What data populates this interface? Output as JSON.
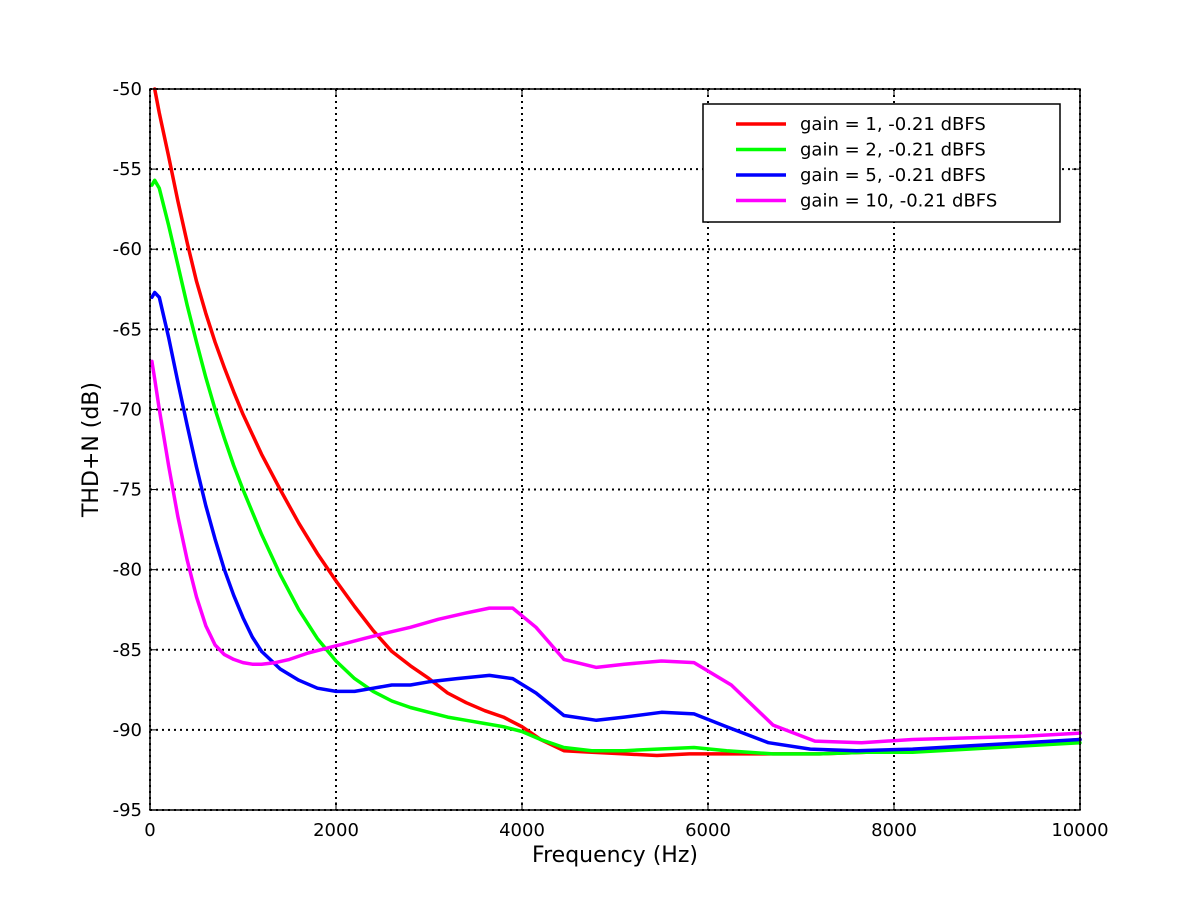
{
  "chart_data": {
    "type": "line",
    "xlabel": "Frequency (Hz)",
    "ylabel": "THD+N (dB)",
    "xlim": [
      0,
      10000
    ],
    "ylim": [
      -95,
      -50
    ],
    "x_ticks": [
      0,
      2000,
      4000,
      6000,
      8000,
      10000
    ],
    "y_ticks": [
      -95,
      -90,
      -85,
      -80,
      -75,
      -70,
      -65,
      -60,
      -55,
      -50
    ],
    "x_tick_labels": [
      "0",
      "2000",
      "4000",
      "6000",
      "8000",
      "10000"
    ],
    "y_tick_labels": [
      "-95",
      "-90",
      "-85",
      "-80",
      "-75",
      "-70",
      "-65",
      "-60",
      "-55",
      "-50"
    ],
    "grid": true,
    "grid_style": "dotted",
    "legend_position": "top-right",
    "series": [
      {
        "name": "gain = 1, -0.21 dBFS",
        "color": "#ff0000",
        "x": [
          50,
          100,
          200,
          300,
          400,
          500,
          600,
          700,
          800,
          900,
          1000,
          1200,
          1400,
          1600,
          1800,
          2000,
          2200,
          2400,
          2600,
          2800,
          3000,
          3200,
          3400,
          3600,
          3800,
          3900,
          4000,
          4200,
          4450,
          4750,
          5100,
          5450,
          5800,
          6200,
          6700,
          7200,
          7700,
          8200,
          8800,
          9400,
          10000
        ],
        "y": [
          -50,
          -51.5,
          -54.2,
          -57,
          -59.6,
          -62,
          -64,
          -65.8,
          -67.4,
          -68.9,
          -70.3,
          -72.8,
          -75,
          -77.1,
          -79,
          -80.7,
          -82.3,
          -83.8,
          -85.1,
          -86,
          -86.8,
          -87.7,
          -88.3,
          -88.8,
          -89.2,
          -89.5,
          -89.8,
          -90.6,
          -91.3,
          -91.4,
          -91.5,
          -91.6,
          -91.5,
          -91.5,
          -91.5,
          -91.5,
          -91.4,
          -91.3,
          -91.1,
          -90.9,
          -90.6
        ]
      },
      {
        "name": "gain = 2, -0.21 dBFS",
        "color": "#00ff00",
        "x": [
          20,
          50,
          100,
          200,
          300,
          400,
          500,
          600,
          700,
          800,
          900,
          1000,
          1200,
          1400,
          1600,
          1800,
          2000,
          2200,
          2400,
          2600,
          2800,
          3000,
          3200,
          3400,
          3600,
          3800,
          4000,
          4200,
          4450,
          4750,
          5100,
          5450,
          5850,
          6200,
          6700,
          7200,
          7700,
          8200,
          8800,
          9400,
          10000
        ],
        "y": [
          -56,
          -55.7,
          -56.2,
          -58.5,
          -61,
          -63.5,
          -65.8,
          -68,
          -70,
          -71.8,
          -73.5,
          -75,
          -77.8,
          -80.3,
          -82.5,
          -84.3,
          -85.7,
          -86.8,
          -87.6,
          -88.2,
          -88.6,
          -88.9,
          -89.2,
          -89.4,
          -89.6,
          -89.8,
          -90.1,
          -90.6,
          -91.1,
          -91.3,
          -91.3,
          -91.2,
          -91.1,
          -91.3,
          -91.5,
          -91.5,
          -91.4,
          -91.4,
          -91.2,
          -91,
          -90.8
        ]
      },
      {
        "name": "gain = 5, -0.21 dBFS",
        "color": "#0000ff",
        "x": [
          20,
          50,
          100,
          200,
          300,
          400,
          500,
          600,
          700,
          800,
          900,
          1000,
          1100,
          1200,
          1400,
          1600,
          1800,
          2000,
          2200,
          2400,
          2600,
          2800,
          3000,
          3300,
          3650,
          3900,
          4150,
          4450,
          4800,
          5100,
          5500,
          5850,
          6200,
          6650,
          7100,
          7600,
          8200,
          8800,
          9400,
          10000
        ],
        "y": [
          -63,
          -62.7,
          -63,
          -65.5,
          -68.3,
          -71,
          -73.6,
          -76,
          -78.1,
          -80,
          -81.6,
          -83,
          -84.2,
          -85.1,
          -86.2,
          -86.9,
          -87.4,
          -87.6,
          -87.6,
          -87.4,
          -87.2,
          -87.2,
          -87,
          -86.8,
          -86.6,
          -86.8,
          -87.7,
          -89.1,
          -89.4,
          -89.2,
          -88.9,
          -89,
          -89.8,
          -90.8,
          -91.2,
          -91.3,
          -91.2,
          -91,
          -90.8,
          -90.6
        ]
      },
      {
        "name": "gain = 10, -0.21 dBFS",
        "color": "#ff00ff",
        "x": [
          20,
          50,
          100,
          200,
          300,
          400,
          500,
          600,
          700,
          800,
          900,
          1000,
          1100,
          1200,
          1350,
          1500,
          1700,
          1900,
          2100,
          2300,
          2500,
          2800,
          3100,
          3400,
          3650,
          3900,
          4150,
          4450,
          4800,
          5100,
          5500,
          5850,
          6250,
          6700,
          7150,
          7650,
          8200,
          8800,
          9400,
          10000
        ],
        "y": [
          -67,
          -68.1,
          -70,
          -73.5,
          -76.7,
          -79.4,
          -81.7,
          -83.5,
          -84.7,
          -85.3,
          -85.6,
          -85.8,
          -85.9,
          -85.9,
          -85.8,
          -85.6,
          -85.2,
          -84.9,
          -84.6,
          -84.3,
          -84,
          -83.6,
          -83.1,
          -82.7,
          -82.4,
          -82.4,
          -83.6,
          -85.6,
          -86.1,
          -85.9,
          -85.7,
          -85.8,
          -87.2,
          -89.7,
          -90.7,
          -90.8,
          -90.6,
          -90.5,
          -90.4,
          -90.2
        ]
      }
    ]
  }
}
